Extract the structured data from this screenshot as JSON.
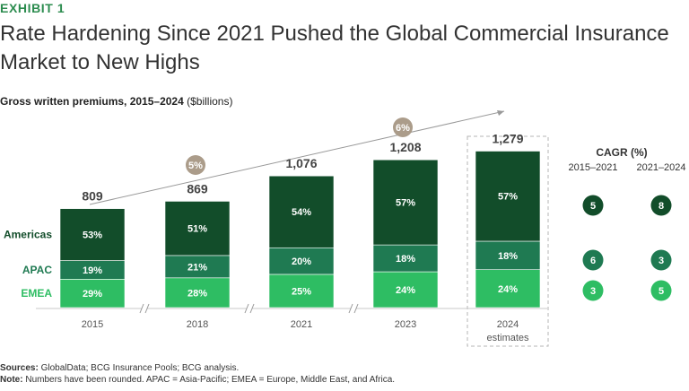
{
  "header": {
    "exhibit": "EXHIBIT 1",
    "title": "Rate Hardening Since 2021 Pushed the Global Commercial Insurance Market to New Highs",
    "subtitle_bold": "Gross written premiums, 2015–2024",
    "subtitle_unit": "($billions)"
  },
  "footer": {
    "sources_label": "Sources:",
    "sources_text": "GlobalData; BCG Insurance Pools; BCG analysis.",
    "note_label": "Note:",
    "note_text": "Numbers have been rounded. APAC = Asia-Pacific; EMEA = Europe, Middle East, and Africa."
  },
  "colors": {
    "americas": "#124d2a",
    "apac": "#1f7a52",
    "emea": "#2ebd63",
    "totals": "#444444",
    "growth_badge": "#ab9c8a",
    "arrow": "#999999"
  },
  "chart_data": {
    "type": "bar",
    "stacked": true,
    "categories": [
      "2015",
      "2018",
      "2021",
      "2023",
      "2024"
    ],
    "category_sublabels": [
      "",
      "",
      "",
      "",
      "estimates"
    ],
    "totals": [
      809,
      869,
      1076,
      1208,
      1279
    ],
    "total_labels": [
      "809",
      "869",
      "1,076",
      "1,208",
      "1,279"
    ],
    "series": [
      {
        "name": "EMEA",
        "shares_pct": [
          29,
          28,
          25,
          24,
          24
        ],
        "labels": [
          "29%",
          "28%",
          "25%",
          "24%",
          "24%"
        ]
      },
      {
        "name": "APAC",
        "shares_pct": [
          19,
          21,
          20,
          18,
          18
        ],
        "labels": [
          "19%",
          "21%",
          "20%",
          "18%",
          "18%"
        ]
      },
      {
        "name": "Americas",
        "shares_pct": [
          53,
          51,
          54,
          57,
          57
        ],
        "labels": [
          "53%",
          "51%",
          "54%",
          "57%",
          "57%"
        ]
      }
    ],
    "ylim": [
      0,
      1400
    ],
    "estimate_category": "2024",
    "axis_breaks_after": [
      "2015",
      "2018",
      "2021"
    ],
    "growth_markers": [
      {
        "label": "5%",
        "from": "2015",
        "to": "2021"
      },
      {
        "label": "6%",
        "from": "2021",
        "to": "2024"
      }
    ],
    "cagr": {
      "title": "CAGR (%)",
      "periods": [
        "2015–2021",
        "2021–2024"
      ],
      "rows": [
        {
          "region": "Americas",
          "values": [
            "5",
            "8"
          ]
        },
        {
          "region": "APAC",
          "values": [
            "6",
            "3"
          ]
        },
        {
          "region": "EMEA",
          "values": [
            "3",
            "5"
          ]
        }
      ]
    }
  }
}
